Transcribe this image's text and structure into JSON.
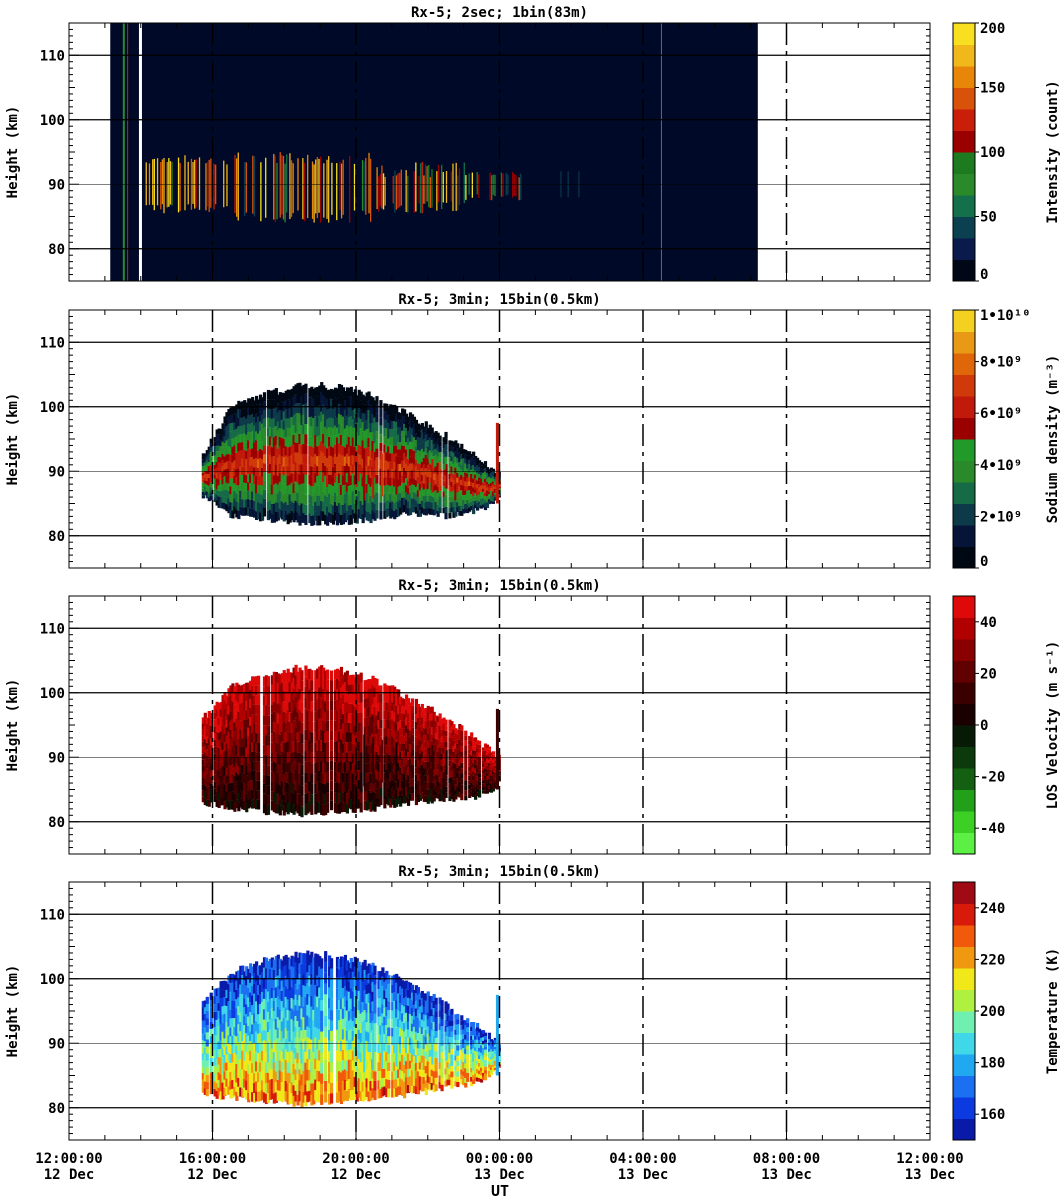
{
  "chart_data": [
    {
      "type": "heatmap",
      "title": "Rx-5;  2sec; 1bin(83m)",
      "ylabel": "Height (km)",
      "ylim": [
        75,
        115
      ],
      "yticks": [
        80,
        90,
        100,
        110
      ],
      "colorbar": {
        "label": "Intensity (count)",
        "range": [
          0,
          200
        ],
        "ticks": [
          "0",
          "50",
          "100",
          "150",
          "200"
        ],
        "tick_values": [
          0,
          50,
          100,
          150,
          200
        ],
        "colors": [
          "#000818",
          "#0a1a4a",
          "#0b4050",
          "#14704a",
          "#2a8a2a",
          "#1e7a1e",
          "#9a0000",
          "#c81e0a",
          "#d8520a",
          "#e8860a",
          "#f0b81a",
          "#f8e020"
        ]
      },
      "background": {
        "x_start_hours": 1.15,
        "x_end_hours": 19.2,
        "color": "#000a28"
      },
      "bands": [
        {
          "x0": 3.6,
          "x1": 4.4,
          "ybot": 86.0,
          "ytop": 93.0
        },
        {
          "x0": 4.0,
          "x1": 8.5,
          "ybot": 84.0,
          "ytop": 95.0
        },
        {
          "x0": 8.5,
          "x1": 11.0,
          "ybot": 85.5,
          "ytop": 94.0
        },
        {
          "x0": 11.0,
          "x1": 12.5,
          "ybot": 87.0,
          "ytop": 93.0
        }
      ]
    },
    {
      "type": "heatmap",
      "title": "Rx-5; 3min; 15bin(0.5km)",
      "ylabel": "Height (km)",
      "ylim": [
        75,
        115
      ],
      "yticks": [
        80,
        90,
        100,
        110
      ],
      "colorbar": {
        "label": "Sodium density (m⁻³)",
        "range": [
          0,
          10000000000
        ],
        "ticks": [
          "0",
          "2•10⁹",
          "4•10⁹",
          "6•10⁹",
          "8•10⁹",
          "1•10¹⁰"
        ],
        "tick_values": [
          0,
          2000000000,
          4000000000,
          6000000000,
          8000000000,
          10000000000
        ],
        "colors": [
          "#000814",
          "#061438",
          "#0c3a48",
          "#166a46",
          "#2a8a2a",
          "#229a2a",
          "#9a0000",
          "#c21a0a",
          "#d03a0a",
          "#e0660a",
          "#e89a16",
          "#f4d020"
        ]
      },
      "profile": {
        "hours": [
          3.7,
          4.5,
          5.5,
          6.5,
          7.5,
          8.5,
          9.5,
          10.5,
          11.5,
          12.0
        ],
        "top_km": [
          92.5,
          100.0,
          102.0,
          103.5,
          103.0,
          101.5,
          98.5,
          95.5,
          91.5,
          89.5
        ],
        "bottom_km": [
          86.0,
          83.0,
          82.5,
          82.0,
          82.0,
          82.5,
          83.5,
          83.0,
          84.0,
          86.0
        ]
      }
    },
    {
      "type": "heatmap",
      "title": "Rx-5; 3min; 15bin(0.5km)",
      "ylabel": "Height (km)",
      "ylim": [
        75,
        115
      ],
      "yticks": [
        80,
        90,
        100,
        110
      ],
      "colorbar": {
        "label": "LOS Velocity (m s⁻¹)",
        "range": [
          -50,
          50
        ],
        "ticks": [
          "-40",
          "-20",
          "0",
          "20",
          "40"
        ],
        "tick_values": [
          -40,
          -20,
          0,
          20,
          40
        ],
        "colors": [
          "#5cf044",
          "#3cd024",
          "#22a01a",
          "#146012",
          "#0c3a0c",
          "#061a06",
          "#1a0000",
          "#3a0000",
          "#600000",
          "#8a0000",
          "#b00000",
          "#de0a0a"
        ]
      },
      "profile": {
        "hours": [
          3.7,
          4.5,
          5.5,
          6.5,
          7.5,
          8.5,
          9.5,
          10.5,
          11.5,
          12.0
        ],
        "top_km": [
          96.0,
          101.0,
          103.0,
          104.0,
          103.5,
          102.0,
          99.0,
          96.0,
          92.0,
          90.0
        ],
        "bottom_km": [
          83.0,
          82.0,
          81.5,
          81.0,
          81.5,
          82.0,
          83.0,
          83.5,
          84.0,
          86.0
        ]
      }
    },
    {
      "type": "heatmap",
      "title": "Rx-5; 3min; 15bin(0.5km)",
      "ylabel": "Height (km)",
      "ylim": [
        75,
        115
      ],
      "yticks": [
        80,
        90,
        100,
        110
      ],
      "colorbar": {
        "label": "Temperature (K)",
        "range": [
          150,
          250
        ],
        "ticks": [
          "160",
          "180",
          "200",
          "220",
          "240"
        ],
        "tick_values": [
          160,
          180,
          200,
          220,
          240
        ],
        "colors": [
          "#0a1aa8",
          "#0a3ae0",
          "#1a70f0",
          "#20a8f0",
          "#40d8e8",
          "#70f0b0",
          "#b0f040",
          "#f0e818",
          "#f09810",
          "#f05a0a",
          "#d81a0a",
          "#a00a14"
        ]
      },
      "profile": {
        "hours": [
          3.7,
          4.5,
          5.5,
          6.5,
          7.5,
          8.5,
          9.5,
          10.5,
          11.5,
          12.0
        ],
        "top_km": [
          96.0,
          101.0,
          103.0,
          104.0,
          103.5,
          102.0,
          99.0,
          96.0,
          92.0,
          90.0
        ],
        "bottom_km": [
          82.0,
          81.5,
          81.0,
          80.5,
          81.0,
          81.5,
          82.0,
          83.0,
          84.0,
          86.0
        ]
      }
    }
  ],
  "x_axis": {
    "label": "UT",
    "xlim_hours": [
      0,
      24
    ],
    "major_ticks": [
      {
        "hours": 0,
        "time": "12:00:00",
        "date": "12 Dec"
      },
      {
        "hours": 4,
        "time": "16:00:00",
        "date": "12 Dec"
      },
      {
        "hours": 8,
        "time": "20:00:00",
        "date": "12 Dec"
      },
      {
        "hours": 12,
        "time": "00:00:00",
        "date": "13 Dec"
      },
      {
        "hours": 16,
        "time": "04:00:00",
        "date": "13 Dec"
      },
      {
        "hours": 20,
        "time": "08:00:00",
        "date": "13 Dec"
      },
      {
        "hours": 24,
        "time": "12:00:00",
        "date": "13 Dec"
      }
    ]
  }
}
